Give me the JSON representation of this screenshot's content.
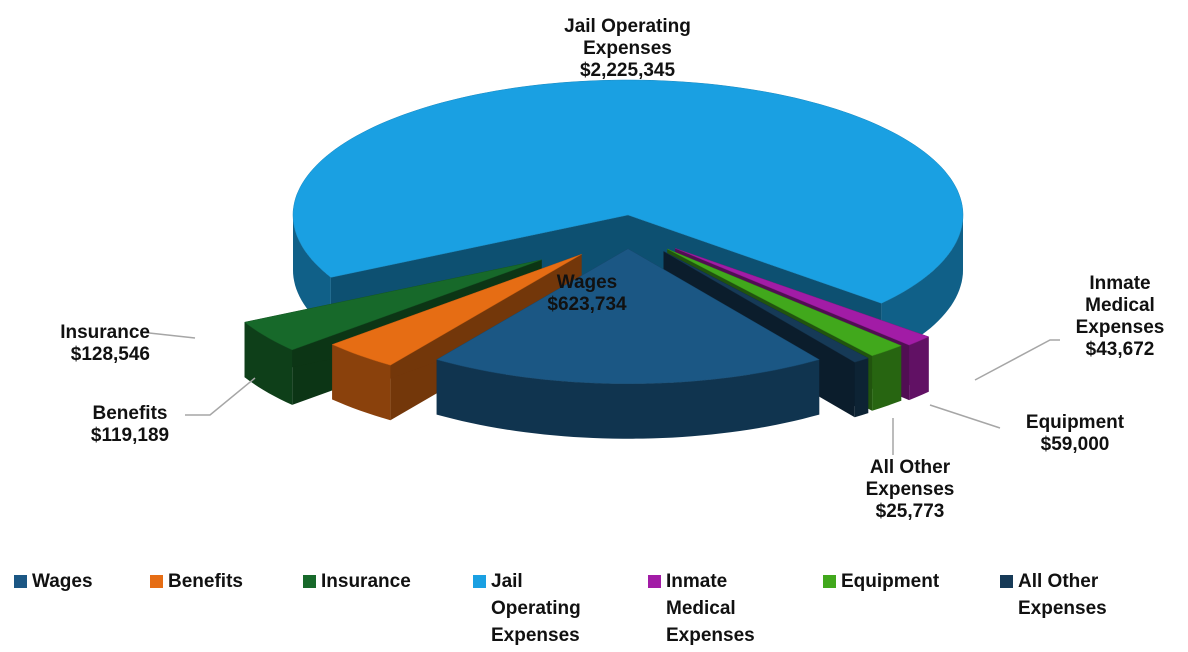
{
  "chart_data": {
    "type": "pie",
    "categories": [
      "Wages",
      "Benefits",
      "Insurance",
      "Jail Operating Expenses",
      "Inmate Medical Expenses",
      "Equipment",
      "All Other Expenses"
    ],
    "values": [
      623734,
      119189,
      128546,
      2225345,
      43672,
      59000,
      25773
    ],
    "value_labels": [
      "$623,734",
      "$119,189",
      "$128,546",
      "$2,225,345",
      "$43,672",
      "$59,000",
      "$25,773"
    ],
    "colors": [
      "#1b5784",
      "#e66d14",
      "#17692a",
      "#1aa0e2",
      "#a21ca6",
      "#41a81c",
      "#163a57"
    ],
    "legend": "bottom"
  }
}
